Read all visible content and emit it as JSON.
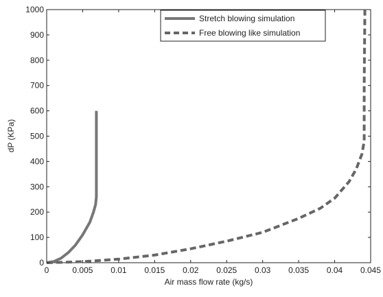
{
  "chart_data": {
    "type": "line",
    "title": "",
    "xlabel": "Air mass flow rate (kg/s)",
    "ylabel": "dP (KPa)",
    "xlim": [
      0,
      0.045
    ],
    "ylim": [
      0,
      1000
    ],
    "xticks": [
      0,
      0.005,
      0.01,
      0.015,
      0.02,
      0.025,
      0.03,
      0.035,
      0.04,
      0.045
    ],
    "xtick_labels": [
      "0",
      "0.005",
      "0.01",
      "0.015",
      "0.02",
      "0.025",
      "0.03",
      "0.035",
      "0.04",
      "0.045"
    ],
    "yticks": [
      0,
      100,
      200,
      300,
      400,
      500,
      600,
      700,
      800,
      900,
      1000
    ],
    "ytick_labels": [
      "0",
      "100",
      "200",
      "300",
      "400",
      "500",
      "600",
      "700",
      "800",
      "900",
      "1000"
    ],
    "grid": false,
    "legend_position": "top-right",
    "series": [
      {
        "name": "Stretch blowing simulation",
        "style": "solid",
        "color": "#777777",
        "x": [
          0,
          0.001,
          0.002,
          0.003,
          0.004,
          0.005,
          0.006,
          0.0065,
          0.0068,
          0.0069,
          0.0069,
          0.0069,
          0.0069
        ],
        "y": [
          0,
          5,
          18,
          40,
          70,
          110,
          160,
          200,
          230,
          260,
          350,
          450,
          600
        ]
      },
      {
        "name": "Free blowing like simulation",
        "style": "dashed",
        "color": "#666666",
        "x": [
          0,
          0.005,
          0.01,
          0.015,
          0.02,
          0.025,
          0.03,
          0.035,
          0.038,
          0.04,
          0.042,
          0.043,
          0.0438,
          0.0441,
          0.0441,
          0.0442
        ],
        "y": [
          0,
          4,
          14,
          30,
          55,
          85,
          120,
          175,
          215,
          255,
          320,
          370,
          430,
          480,
          700,
          1000
        ]
      }
    ]
  }
}
